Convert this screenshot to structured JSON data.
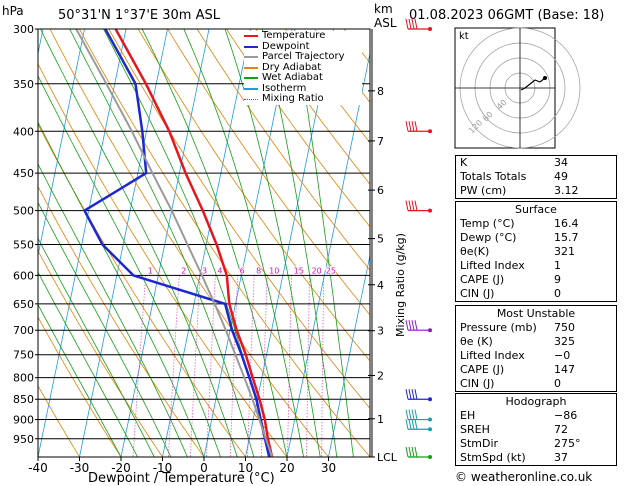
{
  "header": {
    "pressure_unit": "hPa",
    "location": "50°31'N  1°37'E  30m  ASL",
    "height_unit_top": "km",
    "height_unit_bottom": "ASL",
    "datetime": "01.08.2023  06GMT  (Base: 18)"
  },
  "chart_data": {
    "type": "line",
    "title": "50°31'N  1°37'E  30m  ASL",
    "xlabel": "Dewpoint / Temperature (°C)",
    "ylabel": "hPa",
    "xlim": [
      -40,
      40
    ],
    "x_ticks": [
      -40,
      -30,
      -20,
      -10,
      0,
      10,
      20,
      30
    ],
    "pressure_levels": [
      300,
      350,
      400,
      450,
      500,
      550,
      600,
      650,
      700,
      750,
      800,
      850,
      900,
      950
    ],
    "km_ticks": [
      {
        "label": "8",
        "p": 357
      },
      {
        "label": "7",
        "p": 411
      },
      {
        "label": "6",
        "p": 472
      },
      {
        "label": "5",
        "p": 541
      },
      {
        "label": "4",
        "p": 616
      },
      {
        "label": "3",
        "p": 701
      },
      {
        "label": "2",
        "p": 795
      },
      {
        "label": "1",
        "p": 898
      },
      {
        "label": "LCL",
        "p": 1000
      }
    ],
    "mixing_ratio_label": "Mixing Ratio (g/kg)",
    "mixing_ratio_values": [
      "1",
      "2",
      "3",
      "4",
      "6",
      "8",
      "10",
      "15",
      "20",
      "25"
    ],
    "legend": [
      {
        "name": "Temperature",
        "color": "#e8141e"
      },
      {
        "name": "Dewpoint",
        "color": "#1e28d2"
      },
      {
        "name": "Parcel Trajectory",
        "color": "#9a9a9a"
      },
      {
        "name": "Dry Adiabat",
        "color": "#e8820a"
      },
      {
        "name": "Wet Adiabat",
        "color": "#14a014"
      },
      {
        "name": "Isotherm",
        "color": "#1e9be6"
      },
      {
        "name": "Mixing Ratio",
        "color": "#d214b4"
      }
    ],
    "series": [
      {
        "name": "Temperature",
        "color": "#e8141e",
        "points": [
          [
            1000,
            16.4
          ],
          [
            950,
            14.5
          ],
          [
            900,
            12.8
          ],
          [
            850,
            10.5
          ],
          [
            800,
            7.8
          ],
          [
            750,
            5.0
          ],
          [
            700,
            1.6
          ],
          [
            650,
            -1.5
          ],
          [
            600,
            -3.5
          ],
          [
            550,
            -7.5
          ],
          [
            500,
            -12.5
          ],
          [
            450,
            -18.5
          ],
          [
            400,
            -24.5
          ],
          [
            350,
            -32.5
          ],
          [
            300,
            -42.5
          ]
        ]
      },
      {
        "name": "Dewpoint",
        "color": "#1e28d2",
        "points": [
          [
            1000,
            15.7
          ],
          [
            950,
            13.8
          ],
          [
            900,
            11.8
          ],
          [
            850,
            9.8
          ],
          [
            800,
            7.0
          ],
          [
            750,
            4.0
          ],
          [
            700,
            0.5
          ],
          [
            650,
            -2.5
          ],
          [
            600,
            -26
          ],
          [
            550,
            -35
          ],
          [
            500,
            -41
          ],
          [
            450,
            -28
          ],
          [
            400,
            -31
          ],
          [
            350,
            -35
          ],
          [
            300,
            -45
          ]
        ]
      },
      {
        "name": "Parcel Trajectory",
        "color": "#9a9a9a",
        "points": [
          [
            1000,
            16.4
          ],
          [
            950,
            14.0
          ],
          [
            900,
            11.5
          ],
          [
            850,
            8.8
          ],
          [
            800,
            5.8
          ],
          [
            750,
            2.5
          ],
          [
            700,
            -1.0
          ],
          [
            650,
            -5.0
          ],
          [
            600,
            -9.5
          ],
          [
            550,
            -14.5
          ],
          [
            500,
            -20.0
          ],
          [
            450,
            -26.5
          ],
          [
            400,
            -33.5
          ],
          [
            350,
            -42
          ],
          [
            300,
            -52
          ]
        ]
      }
    ]
  },
  "hodograph": {
    "label": "kt",
    "ring_labels": [
      "40",
      "60",
      "120"
    ]
  },
  "indices": [
    {
      "label": "K",
      "value": "34"
    },
    {
      "label": "Totals Totals",
      "value": "49"
    },
    {
      "label": "PW (cm)",
      "value": "3.12"
    }
  ],
  "surface": {
    "title": "Surface",
    "rows": [
      {
        "label": "Temp (°C)",
        "value": "16.4"
      },
      {
        "label": "Dewp (°C)",
        "value": "15.7"
      },
      {
        "label": "θe(K)",
        "value": "321"
      },
      {
        "label": "Lifted Index",
        "value": "1"
      },
      {
        "label": "CAPE (J)",
        "value": "9"
      },
      {
        "label": "CIN (J)",
        "value": "0"
      }
    ]
  },
  "unstable": {
    "title": "Most Unstable",
    "rows": [
      {
        "label": "Pressure (mb)",
        "value": "750"
      },
      {
        "label": "θe (K)",
        "value": "325"
      },
      {
        "label": "Lifted Index",
        "value": "−0"
      },
      {
        "label": "CAPE (J)",
        "value": "147"
      },
      {
        "label": "CIN (J)",
        "value": "0"
      }
    ]
  },
  "hodo_table": {
    "title": "Hodograph",
    "rows": [
      {
        "label": "EH",
        "value": "−86"
      },
      {
        "label": "SREH",
        "value": "72"
      },
      {
        "label": "StmDir",
        "value": "275°"
      },
      {
        "label": "StmSpd (kt)",
        "value": "37"
      }
    ]
  },
  "copyright": "© weatheronline.co.uk"
}
